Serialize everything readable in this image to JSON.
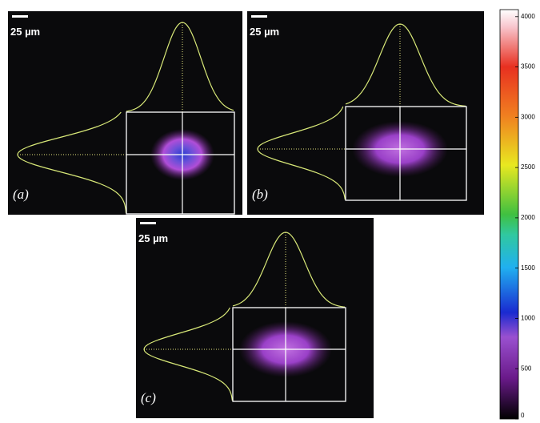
{
  "panels": [
    {
      "label": "(a)",
      "scale_bar": "25 µm"
    },
    {
      "label": "(b)",
      "scale_bar": "25 µm"
    },
    {
      "label": "(c)",
      "scale_bar": "25 µm"
    }
  ],
  "colorbar": {
    "lim": [
      0,
      4070
    ],
    "ticks": [
      0,
      500,
      1000,
      1500,
      2000,
      2500,
      3000,
      3500,
      4000
    ]
  }
}
